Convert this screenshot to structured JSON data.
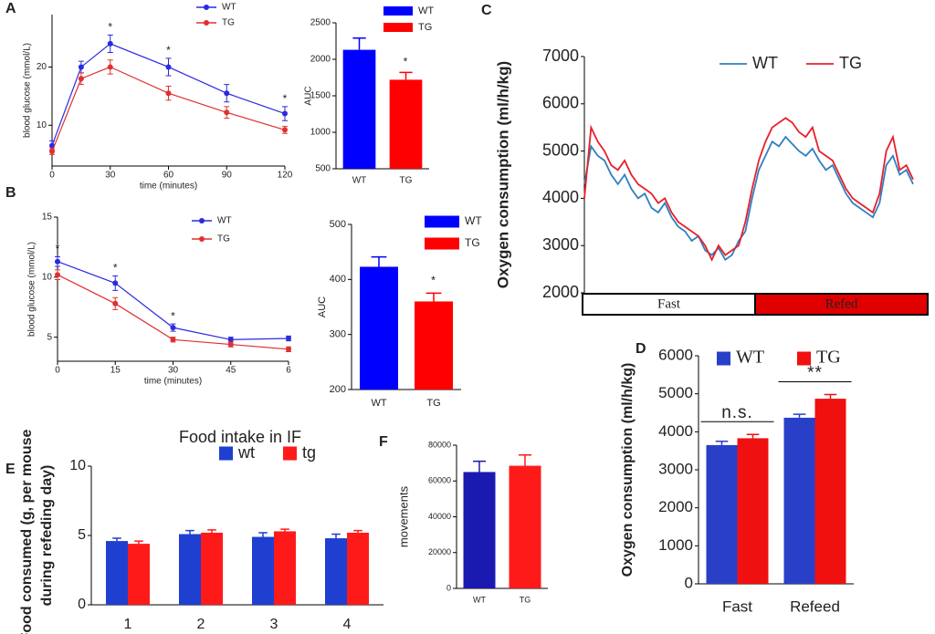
{
  "chart_data": [
    {
      "type": "line",
      "panel": "A",
      "x": [
        0,
        15,
        30,
        60,
        90,
        120
      ],
      "xlim": [
        0,
        120
      ],
      "xticks": [
        0,
        30,
        60,
        90,
        120
      ],
      "ylim": [
        3,
        29
      ],
      "yticks": [
        10,
        20
      ],
      "xlabel": "time (minutes)",
      "ylabel": "blood glucose (mmol/L)",
      "markers": true,
      "series": [
        {
          "name": "WT",
          "color": "#2a2ae0",
          "values": [
            6.5,
            20,
            24,
            20,
            15.5,
            12
          ],
          "errors": [
            0.8,
            1,
            1.5,
            1.5,
            1.5,
            1.2
          ]
        },
        {
          "name": "TG",
          "color": "#e03030",
          "values": [
            5.5,
            18,
            20,
            15.5,
            12.2,
            9.2
          ],
          "errors": [
            0.5,
            1,
            1.2,
            1.2,
            1,
            0.6
          ]
        }
      ],
      "annotations": [
        {
          "x": 30,
          "text": "*"
        },
        {
          "x": 60,
          "text": "*"
        },
        {
          "x": 120,
          "text": "*"
        }
      ]
    },
    {
      "type": "bar",
      "categories": [
        "WT",
        "TG"
      ],
      "values": [
        2130,
        1720
      ],
      "errors": [
        160,
        100
      ],
      "colors": [
        "#0000ff",
        "#ff0000"
      ],
      "legend": true,
      "ylim": [
        500,
        2500
      ],
      "yticks": [
        500,
        1000,
        1500,
        2000,
        2500
      ],
      "ylabel": "AUC",
      "annotations": [
        {
          "x": "TG",
          "text": "*"
        }
      ]
    },
    {
      "type": "line",
      "panel": "B",
      "x": [
        0,
        15,
        30,
        45,
        60
      ],
      "xlim": [
        0,
        60
      ],
      "xticks": [
        0,
        15,
        30,
        45,
        {
          "value": 60,
          "label": "6"
        }
      ],
      "ylim": [
        3,
        15
      ],
      "yticks": [
        5,
        10,
        15
      ],
      "xlabel": "time (minutes)",
      "ylabel": "blood glucose (mmol/L)",
      "markers": true,
      "series": [
        {
          "name": "WT",
          "color": "#2a2ae0",
          "values": [
            11.3,
            9.5,
            5.8,
            4.8,
            4.9
          ],
          "errors": [
            0.4,
            0.6,
            0.3,
            0.2,
            0.2
          ]
        },
        {
          "name": "TG",
          "color": "#e03030",
          "values": [
            10.2,
            7.8,
            4.8,
            4.4,
            4.0
          ],
          "errors": [
            0.4,
            0.5,
            0.2,
            0.2,
            0.2
          ]
        }
      ],
      "annotations": [
        {
          "x": 0,
          "text": "*"
        },
        {
          "x": 15,
          "text": "*"
        },
        {
          "x": 30,
          "text": "*"
        }
      ]
    },
    {
      "type": "bar",
      "categories": [
        "WT",
        "TG"
      ],
      "values": [
        423,
        360
      ],
      "errors": [
        18,
        15
      ],
      "colors": [
        "#0000ff",
        "#ff0000"
      ],
      "legend": true,
      "ylim": [
        200,
        500
      ],
      "yticks": [
        200,
        300,
        400,
        500
      ],
      "ylabel": "AUC",
      "annotations": [
        {
          "x": "TG",
          "text": "*"
        }
      ]
    },
    {
      "type": "line",
      "panel": "C",
      "categories": [
        null,
        null,
        null,
        null,
        null,
        null,
        null,
        null,
        null,
        null,
        null,
        null,
        null,
        null,
        null,
        null,
        null,
        null,
        null,
        null,
        null,
        null,
        null,
        null,
        null,
        null,
        null,
        null,
        null,
        null,
        null,
        null,
        null,
        null,
        null,
        null,
        null,
        null,
        null,
        null,
        null,
        null,
        null,
        null,
        null,
        null,
        null,
        null,
        null,
        null
      ],
      "ylim": [
        2000,
        7000
      ],
      "yticks": [
        2000,
        3000,
        4000,
        5000,
        6000,
        7000
      ],
      "ylabel": "Oxygen consumption (ml/h/kg)",
      "series": [
        {
          "name": "WT",
          "color": "#2f7fc1",
          "values": [
            4300,
            5100,
            4900,
            4800,
            4500,
            4300,
            4500,
            4200,
            4000,
            4100,
            3800,
            3700,
            3900,
            3600,
            3400,
            3300,
            3100,
            3200,
            2900,
            2800,
            2950,
            2700,
            2800,
            3100,
            3300,
            4000,
            4600,
            4900,
            5200,
            5100,
            5300,
            5150,
            5000,
            4900,
            5050,
            4800,
            4600,
            4700,
            4400,
            4100,
            3900,
            3800,
            3700,
            3600,
            3900,
            4700,
            4900,
            4500,
            4600,
            4300
          ]
        },
        {
          "name": "TG",
          "color": "#e8202a",
          "values": [
            4000,
            5500,
            5200,
            5000,
            4700,
            4600,
            4800,
            4500,
            4300,
            4200,
            4100,
            3900,
            4000,
            3700,
            3500,
            3400,
            3300,
            3200,
            3000,
            2700,
            3000,
            2800,
            2900,
            3000,
            3500,
            4200,
            4800,
            5200,
            5500,
            5600,
            5700,
            5600,
            5400,
            5300,
            5500,
            5000,
            4900,
            4800,
            4500,
            4200,
            4000,
            3900,
            3800,
            3700,
            4100,
            5000,
            5300,
            4600,
            4700,
            4400
          ]
        }
      ],
      "phases": [
        {
          "label": "Fast",
          "color": "#ffffff"
        },
        {
          "label": "Refed",
          "color": "#e00000"
        }
      ]
    },
    {
      "type": "bar",
      "panel": "D",
      "categories": [
        "Fast",
        "Refeed"
      ],
      "ylim": [
        0,
        6000
      ],
      "yticks": [
        0,
        1000,
        2000,
        3000,
        4000,
        5000,
        6000
      ],
      "ylabel": "Oxygen consumption (ml/h/kg)",
      "series": [
        {
          "name": "WT",
          "color": "#2a3fc8",
          "values": [
            3650,
            4370
          ],
          "errors": [
            100,
            90
          ]
        },
        {
          "name": "TG",
          "color": "#f01010",
          "values": [
            3830,
            4870
          ],
          "errors": [
            100,
            110
          ]
        }
      ],
      "annotations": [
        {
          "x": "Fast",
          "text": "n.s."
        },
        {
          "x": "Refeed",
          "text": "**"
        }
      ]
    },
    {
      "type": "bar",
      "panel": "E",
      "title": "Food intake in IF",
      "categories": [
        "1",
        "2",
        "3",
        "4"
      ],
      "ylim": [
        0,
        10
      ],
      "yticks": [
        0,
        5,
        10
      ],
      "ylabel": [
        "Food consumed (g, per mouse",
        "during refeding day)"
      ],
      "series": [
        {
          "name": "wt",
          "color": "#1f3fd0",
          "values": [
            4.6,
            5.1,
            4.9,
            4.8
          ],
          "errors": [
            0.2,
            0.25,
            0.3,
            0.3
          ]
        },
        {
          "name": "tg",
          "color": "#ff1a1a",
          "values": [
            4.4,
            5.2,
            5.3,
            5.2
          ],
          "errors": [
            0.2,
            0.2,
            0.15,
            0.15
          ]
        }
      ]
    },
    {
      "type": "bar",
      "panel": "F",
      "categories": [
        "WT",
        "TG"
      ],
      "values": [
        65000,
        68500
      ],
      "errors": [
        6000,
        6000
      ],
      "colors": [
        "#1a1ab0",
        "#ff1a1a"
      ],
      "ylim": [
        0,
        80000
      ],
      "yticks": [
        0,
        20000,
        40000,
        60000,
        80000
      ],
      "ylabel": "movements"
    }
  ]
}
